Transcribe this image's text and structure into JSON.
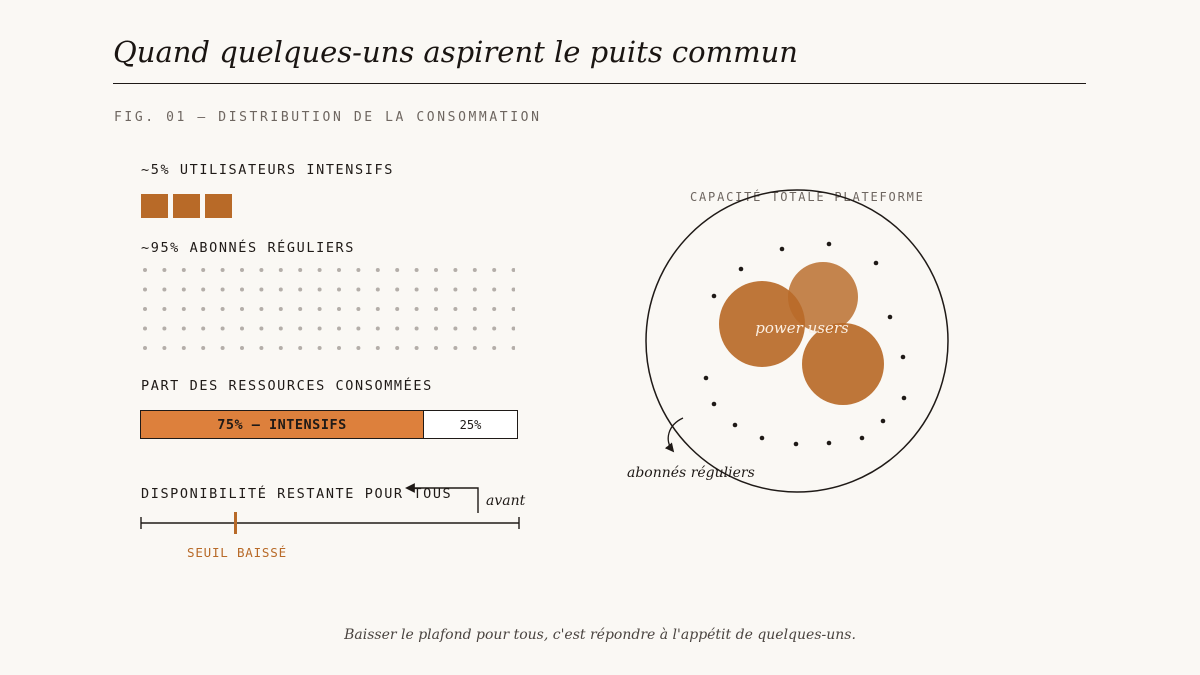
{
  "title": "Quand quelques-uns aspirent le puits commun",
  "figure_label": "FIG. 01 — DISTRIBUTION DE LA CONSOMMATION",
  "colors": {
    "background": "#faf8f4",
    "ink": "#1f1a17",
    "muted": "#6e6660",
    "accent": "#b86a28",
    "accent_light": "#dd803c"
  },
  "intensive_users": {
    "label": "~5% UTILISATEURS INTENSIFS",
    "square_count": 3
  },
  "regular_users": {
    "label": "~95% ABONNÉS RÉGULIERS",
    "dot_rows": 5,
    "dot_cols": 20
  },
  "resource_share": {
    "label": "PART DES RESSOURCES CONSOMMÉES",
    "intensive_text": "75% — INTENSIFS",
    "intensive_value": 75,
    "regular_text": "25%",
    "regular_value": 25
  },
  "availability": {
    "label": "DISPONIBILITÉ RESTANTE POUR TOUS",
    "before_label": "avant",
    "threshold_label": "SEUIL BAISSÉ",
    "before_level": 1.0,
    "threshold_level": 0.25
  },
  "platform": {
    "capacity_label": "CAPACITÉ TOTALE PLATEFORME",
    "power_users_label": "power users",
    "regular_label": "abonnés réguliers"
  },
  "caption": "Baisser le plafond pour tous, c'est répondre à l'appétit de quelques-uns."
}
